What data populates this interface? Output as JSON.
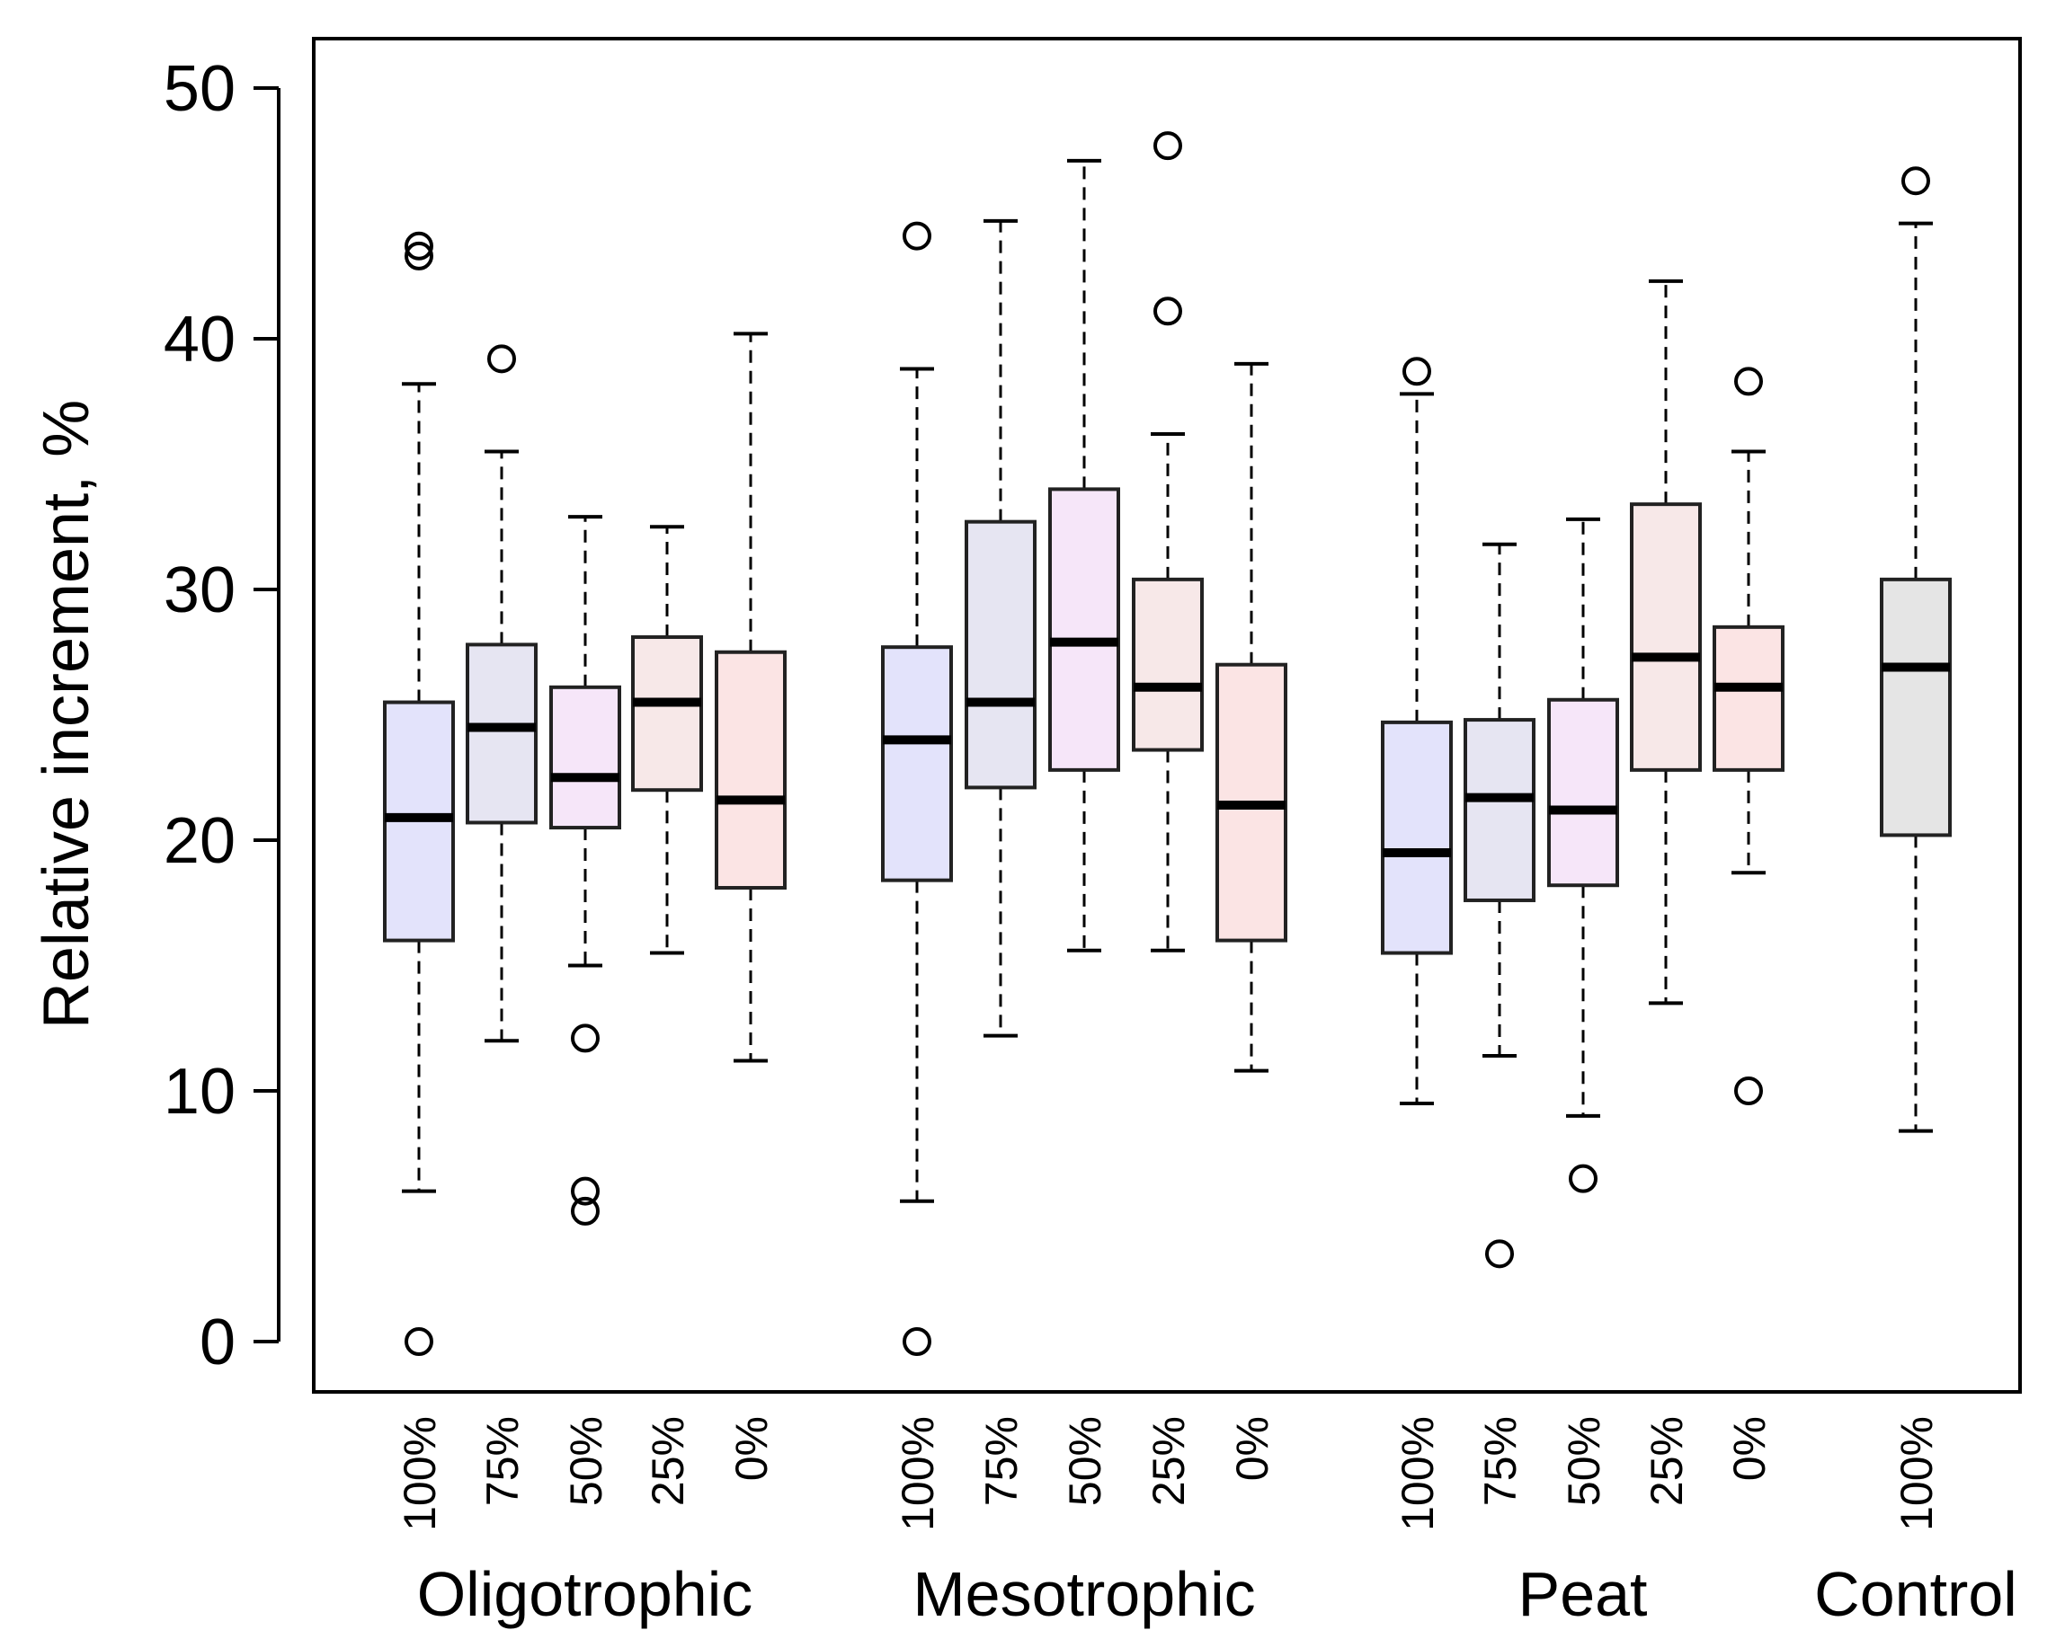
{
  "chart_data": {
    "type": "boxplot",
    "title": "",
    "xlabel": "",
    "ylabel": "Relative increment, %",
    "ylim": [
      -2,
      52
    ],
    "yticks": [
      0,
      10,
      20,
      30,
      40,
      50
    ],
    "ytick_labels": [
      "0",
      "10",
      "20",
      "30",
      "40",
      "50"
    ],
    "grid": false,
    "groups": [
      {
        "name": "Oligotrophic",
        "boxes": [
          0,
          1,
          2,
          3,
          4
        ]
      },
      {
        "name": "Mesotrophic",
        "boxes": [
          5,
          6,
          7,
          8,
          9
        ]
      },
      {
        "name": "Peat",
        "boxes": [
          10,
          11,
          12,
          13,
          14
        ]
      },
      {
        "name": "Control",
        "boxes": [
          15
        ]
      }
    ],
    "boxes": [
      {
        "group": "Oligotrophic",
        "label": "100%",
        "whisker_low": 6,
        "q1": 16,
        "median": 20.9,
        "q3": 25.5,
        "whisker_high": 38.2,
        "outliers": [
          0,
          43.3,
          43.7
        ],
        "color": "#e3e3fb"
      },
      {
        "group": "Oligotrophic",
        "label": "75%",
        "whisker_low": 12,
        "q1": 20.7,
        "median": 24.5,
        "q3": 27.8,
        "whisker_high": 35.5,
        "outliers": [
          39.2
        ],
        "color": "#e6e5f2"
      },
      {
        "group": "Oligotrophic",
        "label": "50%",
        "whisker_low": 15,
        "q1": 20.5,
        "median": 22.5,
        "q3": 26.1,
        "whisker_high": 32.9,
        "outliers": [
          5.2,
          6,
          12.1
        ],
        "color": "#f6e6f9"
      },
      {
        "group": "Oligotrophic",
        "label": "25%",
        "whisker_low": 15.5,
        "q1": 22,
        "median": 25.5,
        "q3": 28.1,
        "whisker_high": 32.5,
        "outliers": [],
        "color": "#f7e8e8"
      },
      {
        "group": "Oligotrophic",
        "label": "0%",
        "whisker_low": 11.2,
        "q1": 18.1,
        "median": 21.6,
        "q3": 27.5,
        "whisker_high": 40.2,
        "outliers": [],
        "color": "#fbe4e4"
      },
      {
        "group": "Mesotrophic",
        "label": "100%",
        "whisker_low": 5.6,
        "q1": 18.4,
        "median": 24,
        "q3": 27.7,
        "whisker_high": 38.8,
        "outliers": [
          0,
          44.1
        ],
        "color": "#e3e3fb"
      },
      {
        "group": "Mesotrophic",
        "label": "75%",
        "whisker_low": 12.2,
        "q1": 22.1,
        "median": 25.5,
        "q3": 32.7,
        "whisker_high": 44.7,
        "outliers": [],
        "color": "#e6e5f2"
      },
      {
        "group": "Mesotrophic",
        "label": "50%",
        "whisker_low": 15.6,
        "q1": 22.8,
        "median": 27.9,
        "q3": 34,
        "whisker_high": 47.1,
        "outliers": [],
        "color": "#f6e6f9"
      },
      {
        "group": "Mesotrophic",
        "label": "25%",
        "whisker_low": 15.6,
        "q1": 23.6,
        "median": 26.1,
        "q3": 30.4,
        "whisker_high": 36.2,
        "outliers": [
          41.1,
          47.7
        ],
        "color": "#f7e8e8"
      },
      {
        "group": "Mesotrophic",
        "label": "0%",
        "whisker_low": 10.8,
        "q1": 16,
        "median": 21.4,
        "q3": 27,
        "whisker_high": 39,
        "outliers": [],
        "color": "#fbe4e4"
      },
      {
        "group": "Peat",
        "label": "100%",
        "whisker_low": 9.5,
        "q1": 15.5,
        "median": 19.5,
        "q3": 24.7,
        "whisker_high": 37.8,
        "outliers": [
          38.7
        ],
        "color": "#e3e3fb"
      },
      {
        "group": "Peat",
        "label": "75%",
        "whisker_low": 11.4,
        "q1": 17.6,
        "median": 21.7,
        "q3": 24.8,
        "whisker_high": 31.8,
        "outliers": [
          3.5
        ],
        "color": "#e6e5f2"
      },
      {
        "group": "Peat",
        "label": "50%",
        "whisker_low": 9,
        "q1": 18.2,
        "median": 21.2,
        "q3": 25.6,
        "whisker_high": 32.8,
        "outliers": [
          6.5
        ],
        "color": "#f6e6f9"
      },
      {
        "group": "Peat",
        "label": "25%",
        "whisker_low": 13.5,
        "q1": 22.8,
        "median": 27.3,
        "q3": 33.4,
        "whisker_high": 42.3,
        "outliers": [],
        "color": "#f7e8e8"
      },
      {
        "group": "Peat",
        "label": "0%",
        "whisker_low": 18.7,
        "q1": 22.8,
        "median": 26.1,
        "q3": 28.5,
        "whisker_high": 35.5,
        "outliers": [
          10,
          38.3
        ],
        "color": "#fbe4e4"
      },
      {
        "group": "Control",
        "label": "100%",
        "whisker_low": 8.4,
        "q1": 20.2,
        "median": 26.9,
        "q3": 30.4,
        "whisker_high": 44.6,
        "outliers": [
          46.3
        ],
        "color": "#e5e5e5"
      }
    ]
  }
}
